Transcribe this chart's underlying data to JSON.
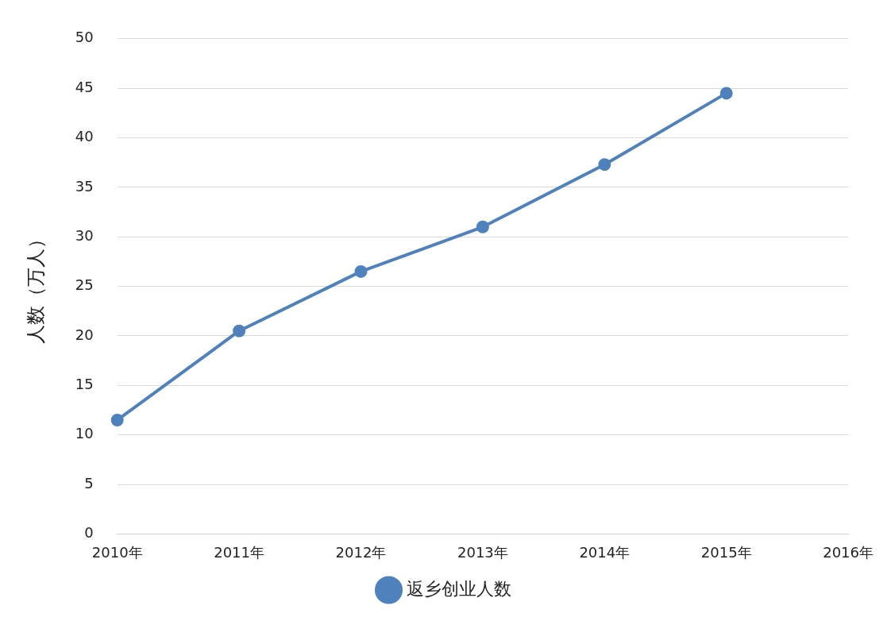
{
  "chart_data": {
    "type": "line",
    "ylabel": "人数（万人）",
    "categories": [
      "2010年",
      "2011年",
      "2012年",
      "2013年",
      "2014年",
      "2015年",
      "2016年"
    ],
    "series": [
      {
        "name": "返乡创业人数",
        "color": "#4f81bd",
        "values": [
          11.5,
          20.5,
          26.5,
          31.0,
          37.3,
          44.5,
          null
        ]
      }
    ],
    "ylim": [
      0,
      50
    ],
    "yticks": [
      0,
      5,
      10,
      15,
      20,
      25,
      30,
      35,
      40,
      45,
      50
    ],
    "grid": "y",
    "legend": "bottom",
    "marker": "circle",
    "line_style": "solid"
  }
}
